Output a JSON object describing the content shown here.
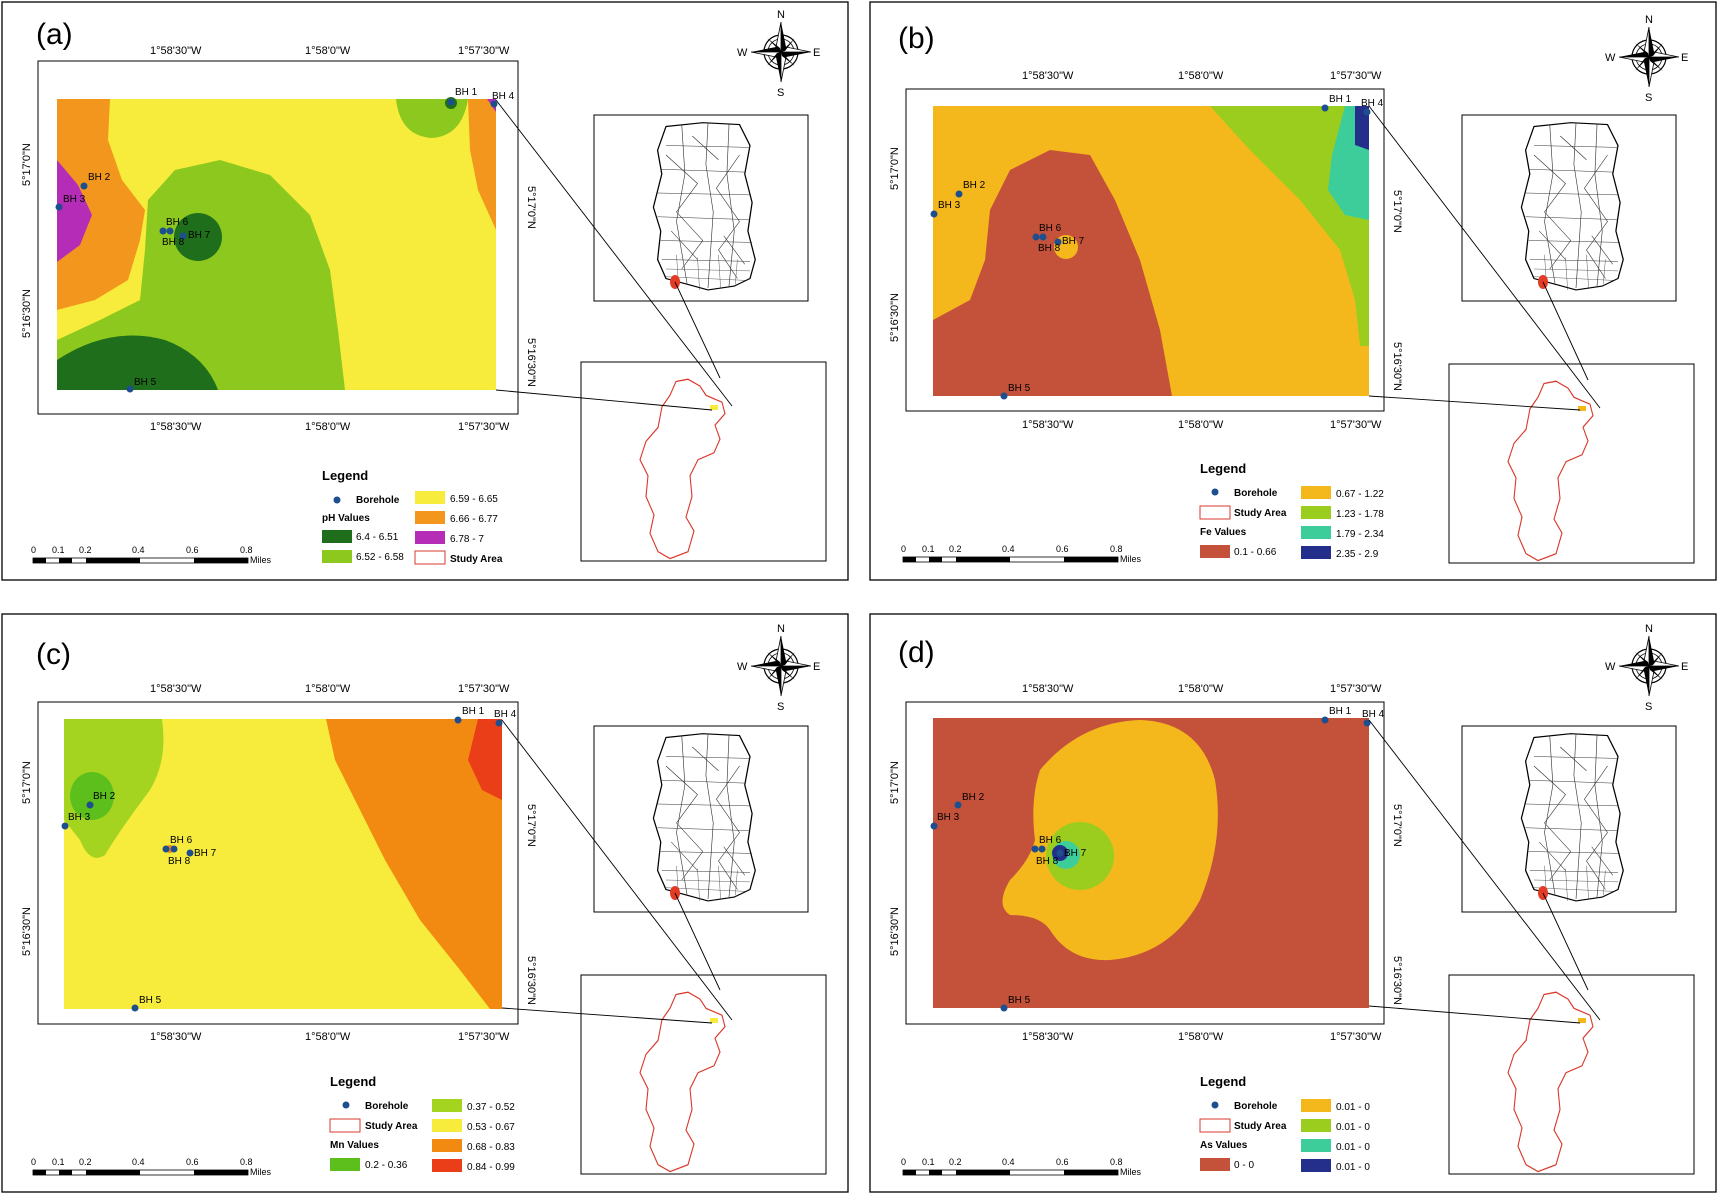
{
  "panels": [
    {
      "id": "a",
      "label": "(a)",
      "top_ticks": [
        "1°58'30\"W",
        "1°58'0\"W",
        "1°57'30\"W"
      ],
      "bottom_ticks": [
        "1°58'30\"W",
        "1°58'0\"W",
        "1°57'30\"W"
      ],
      "left_ticks": [
        "5°17'0\"N",
        "5°16'30\"N"
      ],
      "right_ticks": [
        "5°17'0\"N",
        "5°16'30\"N"
      ],
      "boreholes": [
        {
          "name": "BH 1"
        },
        {
          "name": "BH 2"
        },
        {
          "name": "BH 3"
        },
        {
          "name": "BH 4"
        },
        {
          "name": "BH 5"
        },
        {
          "name": "BH 6"
        },
        {
          "name": "BH 7"
        },
        {
          "name": "BH 8"
        }
      ],
      "legend": {
        "title": "Legend",
        "borehole_label": "Borehole",
        "study_area_label": "Study Area",
        "values_title": "pH Values",
        "classes": [
          {
            "label": "6.4 - 6.51",
            "color": "#1f6e1b"
          },
          {
            "label": "6.52 - 6.58",
            "color": "#8cc81e"
          },
          {
            "label": "6.59 - 6.65",
            "color": "#f7ec3c"
          },
          {
            "label": "6.66 - 6.77",
            "color": "#f3961d"
          },
          {
            "label": "6.78 - 7",
            "color": "#b52db7"
          }
        ]
      },
      "compass": {
        "n": "N",
        "s": "S",
        "e": "E",
        "w": "W"
      },
      "scale": {
        "ticks": [
          "0",
          "0.1",
          "0.2",
          "0.4",
          "0.6",
          "0.8"
        ],
        "unit": "Miles"
      }
    },
    {
      "id": "b",
      "label": "(b)",
      "top_ticks": [
        "1°58'30\"W",
        "1°58'0\"W",
        "1°57'30\"W"
      ],
      "bottom_ticks": [
        "1°58'30\"W",
        "1°58'0\"W",
        "1°57'30\"W"
      ],
      "left_ticks": [
        "5°17'0\"N",
        "5°16'30\"N"
      ],
      "right_ticks": [
        "5°17'0\"N",
        "5°16'30\"N"
      ],
      "boreholes": [
        {
          "name": "BH 1"
        },
        {
          "name": "BH 2"
        },
        {
          "name": "BH 3"
        },
        {
          "name": "BH 4"
        },
        {
          "name": "BH 5"
        },
        {
          "name": "BH 6"
        },
        {
          "name": "BH 7"
        },
        {
          "name": "BH 8"
        }
      ],
      "legend": {
        "title": "Legend",
        "borehole_label": "Borehole",
        "study_area_label": "Study Area",
        "values_title": "Fe Values",
        "classes": [
          {
            "label": "0.1 - 0.66",
            "color": "#c4523a"
          },
          {
            "label": "0.67 - 1.22",
            "color": "#f5b81c"
          },
          {
            "label": "1.23 - 1.78",
            "color": "#9acd1e"
          },
          {
            "label": "1.79 - 2.34",
            "color": "#3dcd9a"
          },
          {
            "label": "2.35 - 2.9",
            "color": "#232f8a"
          }
        ]
      },
      "compass": {
        "n": "N",
        "s": "S",
        "e": "E",
        "w": "W"
      },
      "scale": {
        "ticks": [
          "0",
          "0.1",
          "0.2",
          "0.4",
          "0.6",
          "0.8"
        ],
        "unit": "Miles"
      }
    },
    {
      "id": "c",
      "label": "(c)",
      "top_ticks": [
        "1°58'30\"W",
        "1°58'0\"W",
        "1°57'30\"W"
      ],
      "bottom_ticks": [
        "1°58'30\"W",
        "1°58'0\"W",
        "1°57'30\"W"
      ],
      "left_ticks": [
        "5°17'0\"N",
        "5°16'30\"N"
      ],
      "right_ticks": [
        "5°17'0\"N",
        "5°16'30\"N"
      ],
      "boreholes": [
        {
          "name": "BH 1"
        },
        {
          "name": "BH 2"
        },
        {
          "name": "BH 3"
        },
        {
          "name": "BH 4"
        },
        {
          "name": "BH 5"
        },
        {
          "name": "BH 6"
        },
        {
          "name": "BH 7"
        },
        {
          "name": "BH 8"
        }
      ],
      "legend": {
        "title": "Legend",
        "borehole_label": "Borehole",
        "study_area_label": "Study Area",
        "values_title": "Mn Values",
        "classes": [
          {
            "label": "0.2 - 0.36",
            "color": "#5cbf1c"
          },
          {
            "label": "0.37 - 0.52",
            "color": "#a4d41f"
          },
          {
            "label": "0.53 - 0.67",
            "color": "#f7ec3c"
          },
          {
            "label": "0.68 - 0.83",
            "color": "#f28a12"
          },
          {
            "label": "0.84 - 0.99",
            "color": "#e93e17"
          }
        ]
      },
      "compass": {
        "n": "N",
        "s": "S",
        "e": "E",
        "w": "W"
      },
      "scale": {
        "ticks": [
          "0",
          "0.1",
          "0.2",
          "0.4",
          "0.6",
          "0.8"
        ],
        "unit": "Miles"
      }
    },
    {
      "id": "d",
      "label": "(d)",
      "top_ticks": [
        "1°58'30\"W",
        "1°58'0\"W",
        "1°57'30\"W"
      ],
      "bottom_ticks": [
        "1°58'30\"W",
        "1°58'0\"W",
        "1°57'30\"W"
      ],
      "left_ticks": [
        "5°17'0\"N",
        "5°16'30\"N"
      ],
      "right_ticks": [
        "5°17'0\"N",
        "5°16'30\"N"
      ],
      "boreholes": [
        {
          "name": "BH 1"
        },
        {
          "name": "BH 2"
        },
        {
          "name": "BH 3"
        },
        {
          "name": "BH 4"
        },
        {
          "name": "BH 5"
        },
        {
          "name": "BH 6"
        },
        {
          "name": "BH 7"
        },
        {
          "name": "BH 8"
        }
      ],
      "legend": {
        "title": "Legend",
        "borehole_label": "Borehole",
        "study_area_label": "Study Area",
        "values_title": "As Values",
        "classes": [
          {
            "label": "0 - 0",
            "color": "#c4523a"
          },
          {
            "label": "0.01 - 0",
            "color": "#f5b81c"
          },
          {
            "label": "0.01 - 0",
            "color": "#9acd1e"
          },
          {
            "label": "0.01 - 0",
            "color": "#3dcd9a"
          },
          {
            "label": "0.01 - 0",
            "color": "#232f8a"
          }
        ]
      },
      "compass": {
        "n": "N",
        "s": "S",
        "e": "E",
        "w": "W"
      },
      "scale": {
        "ticks": [
          "0",
          "0.1",
          "0.2",
          "0.4",
          "0.6",
          "0.8"
        ],
        "unit": "Miles"
      }
    }
  ]
}
